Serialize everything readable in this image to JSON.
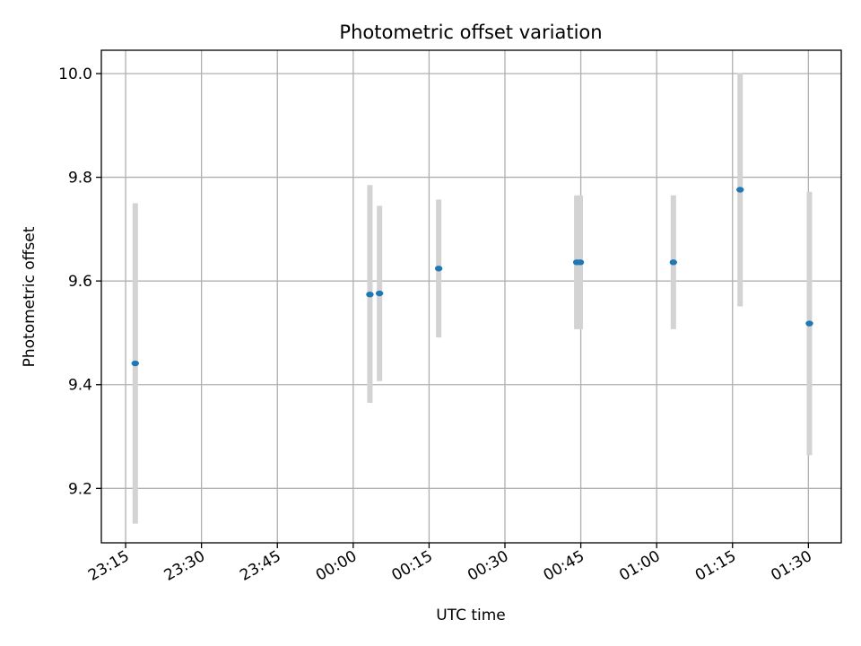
{
  "chart_data": {
    "type": "scatter",
    "title": "Photometric offset variation",
    "xlabel": "UTC time",
    "ylabel": "Photometric offset",
    "x_ticks": [
      "23:15",
      "23:30",
      "23:45",
      "00:00",
      "00:15",
      "00:30",
      "00:45",
      "01:00",
      "01:15",
      "01:30"
    ],
    "x_ticks_minutes": [
      0,
      15,
      30,
      45,
      60,
      75,
      90,
      105,
      120,
      135
    ],
    "x_range_minutes": [
      -4.8,
      141.5
    ],
    "y_ticks": [
      "9.2",
      "9.4",
      "9.6",
      "9.8",
      "10.0"
    ],
    "y_tick_values": [
      9.2,
      9.4,
      9.6,
      9.8,
      10.0
    ],
    "ylim": [
      9.095,
      10.045
    ],
    "grid": true,
    "series": [
      {
        "marker_color": "#1f77b4",
        "errorbar_color": "#d3d3d3",
        "points": [
          {
            "t": 1.9,
            "y": 9.441,
            "err_low": 9.132,
            "err_high": 9.75
          },
          {
            "t": 48.3,
            "y": 9.574,
            "err_low": 9.365,
            "err_high": 9.785
          },
          {
            "t": 50.2,
            "y": 9.576,
            "err_low": 9.407,
            "err_high": 9.745
          },
          {
            "t": 61.9,
            "y": 9.624,
            "err_low": 9.491,
            "err_high": 9.757
          },
          {
            "t": 89.2,
            "y": 9.636,
            "err_low": 9.507,
            "err_high": 9.765
          },
          {
            "t": 89.9,
            "y": 9.636,
            "err_low": 9.507,
            "err_high": 9.765
          },
          {
            "t": 108.3,
            "y": 9.636,
            "err_low": 9.507,
            "err_high": 9.765
          },
          {
            "t": 121.5,
            "y": 9.776,
            "err_low": 9.551,
            "err_high": 10.001
          },
          {
            "t": 135.2,
            "y": 9.518,
            "err_low": 9.264,
            "err_high": 9.772
          }
        ]
      }
    ]
  }
}
